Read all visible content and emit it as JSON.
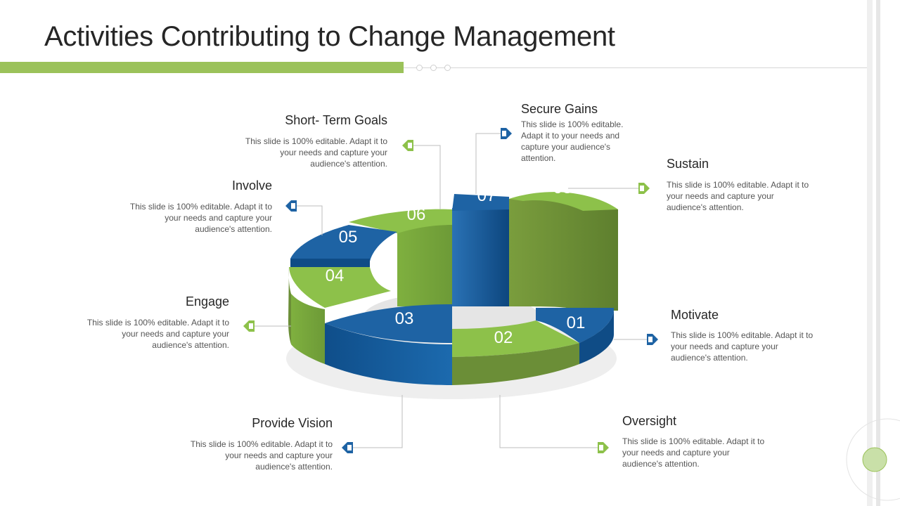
{
  "title": "Activities Contributing to Change Management",
  "segments": [
    {
      "number": "01",
      "heading": "Motivate",
      "description": "This slide is 100% editable. Adapt it to your needs and capture your audience's attention."
    },
    {
      "number": "02",
      "heading": "Oversight",
      "description": "This slide is 100% editable. Adapt it to your needs and capture your audience's attention."
    },
    {
      "number": "03",
      "heading": "Provide Vision",
      "description": "This slide is 100% editable. Adapt it to your needs and capture your audience's attention."
    },
    {
      "number": "04",
      "heading": "Engage",
      "description": "This slide is 100% editable. Adapt it to your needs and capture your audience's attention."
    },
    {
      "number": "05",
      "heading": "Involve",
      "description": "This slide is 100% editable. Adapt it to your needs and capture your audience's attention."
    },
    {
      "number": "06",
      "heading": "Short- Term Goals",
      "description": "This slide is 100% editable. Adapt it to your needs and capture your audience's attention."
    },
    {
      "number": "07",
      "heading": "Secure Gains",
      "description": "This slide is 100% editable. Adapt it to your needs and capture your audience's attention."
    },
    {
      "number": "08",
      "heading": "Sustain",
      "description": "This slide is 100% editable. Adapt it to your needs and capture your audience's attention."
    }
  ],
  "colors": {
    "green": "#8dc14a",
    "green_dark": "#6b8e37",
    "blue": "#1e63a4",
    "blue_dark": "#0f4c86",
    "accent_bar": "#9bc25a"
  }
}
